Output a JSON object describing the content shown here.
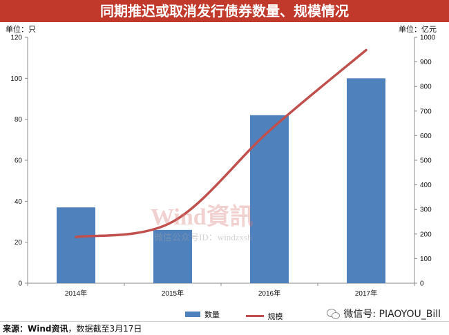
{
  "title": "同期推迟或取消发行债券数量、规模情况",
  "left_unit": "单位：只",
  "right_unit": "单位：亿元",
  "watermark": {
    "main": "Wind資訊",
    "sub": "微信公众号ID：windzxsh"
  },
  "legend": {
    "bar": "数量",
    "line": "规模"
  },
  "wechat_id": "微信号: PIAOYOU_Bill",
  "source": {
    "label": "来源：Wind资讯",
    "rest": "，数据截至3月17日"
  },
  "colors": {
    "bar": "#4f81bd",
    "line": "#c0504d",
    "title_bg": "#c0392b"
  },
  "chart_data": {
    "type": "bar",
    "title": "同期推迟或取消发行债券数量、规模情况",
    "categories": [
      "2014年",
      "2015年",
      "2016年",
      "2017年"
    ],
    "series": [
      {
        "name": "数量",
        "type": "bar",
        "axis": "left",
        "values": [
          37,
          26,
          82,
          100
        ]
      },
      {
        "name": "规模",
        "type": "line",
        "axis": "right",
        "values": [
          188,
          250,
          620,
          948
        ]
      }
    ],
    "y_left": {
      "label": "单位：只",
      "min": 0,
      "max": 120,
      "ticks": [
        0,
        20,
        40,
        60,
        80,
        100,
        120
      ]
    },
    "y_right": {
      "label": "单位：亿元",
      "min": 0,
      "max": 1000,
      "ticks": [
        0,
        100,
        200,
        300,
        400,
        500,
        600,
        700,
        800,
        900,
        1000
      ]
    },
    "grid": false,
    "legend_position": "bottom"
  }
}
